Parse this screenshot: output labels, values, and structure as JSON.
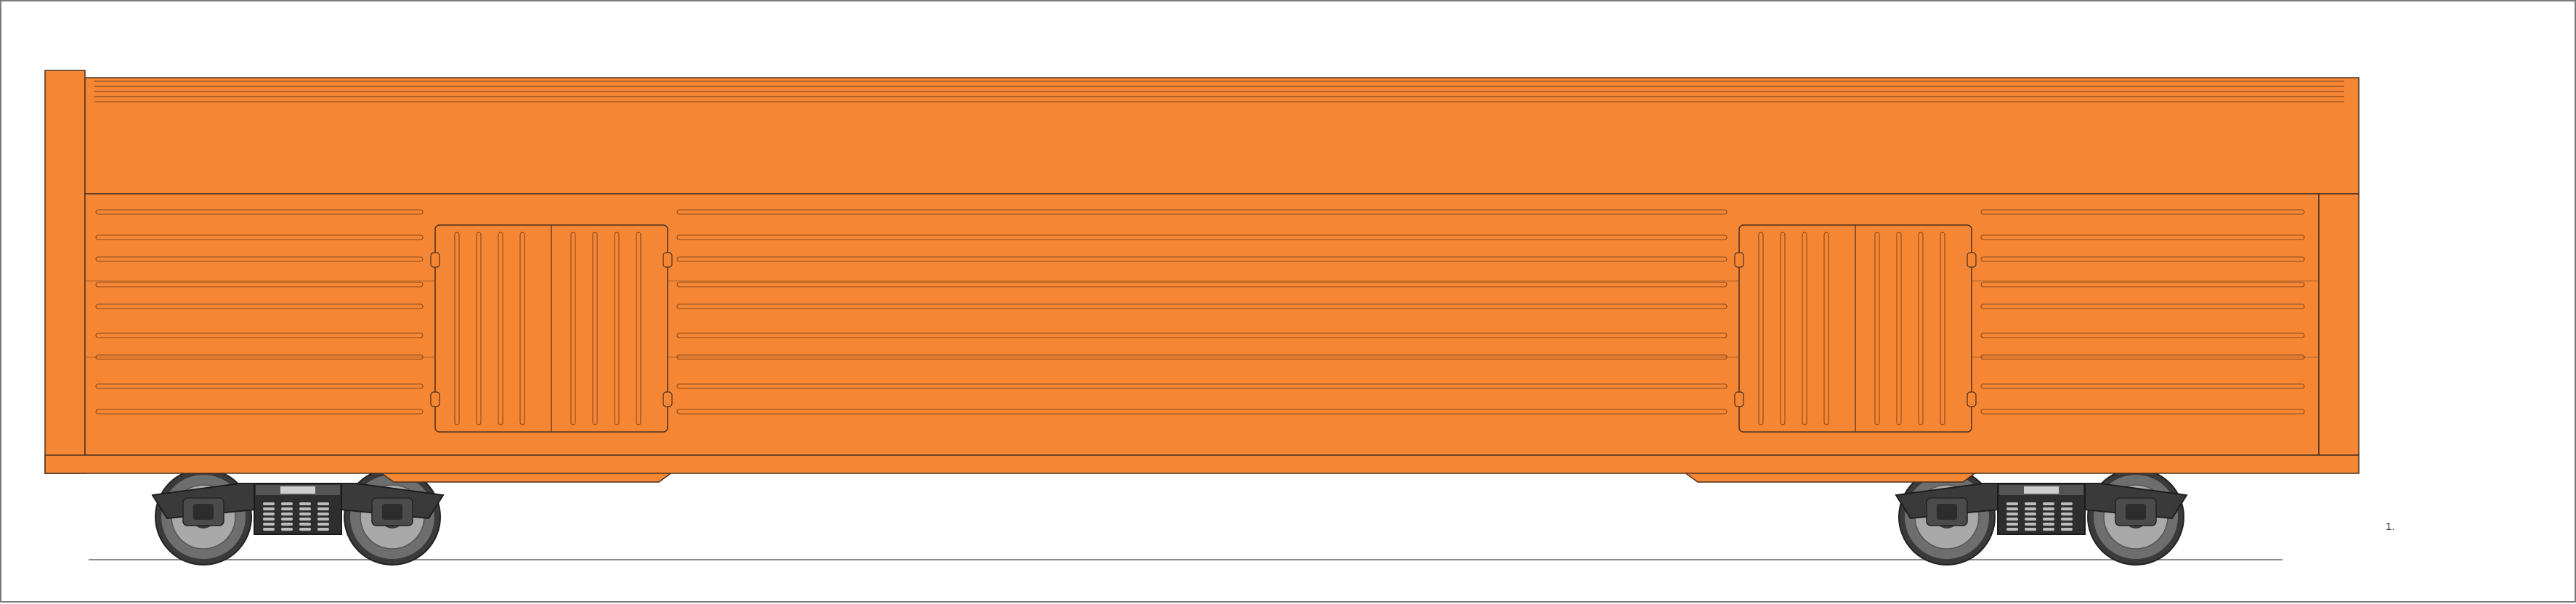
{
  "drawing": {
    "sheet_mark": "1."
  },
  "colors": {
    "body": "#f58634",
    "body_shade": "#e8782a",
    "outline": "#4a3020",
    "groove": "#8a4a1c",
    "underframe": "#3b3536",
    "truck_dark": "#3a3a3a",
    "truck_mid": "#6e6e6e",
    "wheel_light": "#a9a9a9",
    "rail": "#8c8c8c",
    "border": "#7a7a7a"
  },
  "car": {
    "type": "orange boxcar side elevation",
    "doors": 2,
    "trucks": 2
  },
  "icons": {
    "truck": "rail-truck-icon",
    "wheel": "wheel-icon"
  }
}
